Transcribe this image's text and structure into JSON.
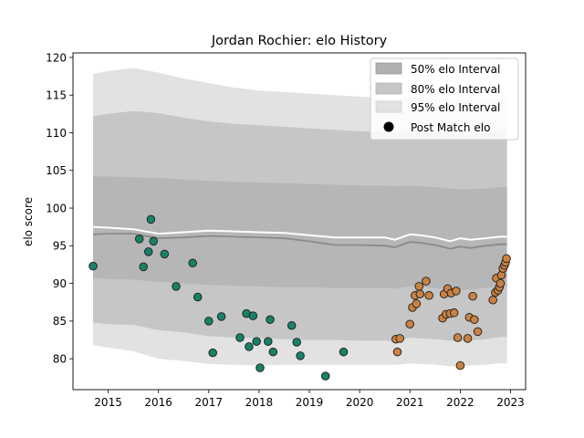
{
  "chart_data": {
    "type": "scatter",
    "title": "Jordan Rochier: elo History",
    "xlabel": "",
    "ylabel": "elo score",
    "xlim": [
      2014.3,
      2023.3
    ],
    "ylim": [
      75.9,
      120.6
    ],
    "x_ticks": [
      2015,
      2016,
      2017,
      2018,
      2019,
      2020,
      2021,
      2022,
      2023
    ],
    "x_tick_labels": [
      "2015",
      "2016",
      "2017",
      "2018",
      "2019",
      "2020",
      "2021",
      "2022",
      "2023"
    ],
    "y_ticks": [
      80,
      85,
      90,
      95,
      100,
      105,
      110,
      115,
      120
    ],
    "y_tick_labels": [
      "80",
      "85",
      "90",
      "95",
      "100",
      "105",
      "110",
      "115",
      "120"
    ],
    "grid": false,
    "legend": {
      "placement": "top-right",
      "entries": [
        "50% elo Interval",
        "80% elo Interval",
        "95% elo Interval",
        "Post Match elo"
      ]
    },
    "colors": {
      "band_50": "#b0b0b0",
      "band_80": "#c6c6c6",
      "band_95": "#e2e2e2",
      "median_line": "#8a8a8a",
      "mean_line": "#ffffff",
      "early_points": "#1a8068",
      "late_points": "#c98243",
      "point_edge": "#1a1a1a"
    },
    "bands": {
      "x": [
        2014.7,
        2015.0,
        2015.5,
        2016.0,
        2016.5,
        2017.0,
        2017.5,
        2018.0,
        2018.5,
        2019.0,
        2019.5,
        2020.0,
        2020.5,
        2020.7,
        2021.0,
        2021.2,
        2021.5,
        2021.8,
        2022.0,
        2022.2,
        2022.5,
        2022.8,
        2022.93
      ],
      "p95_low": [
        81.8,
        81.5,
        81.0,
        80.0,
        79.7,
        79.3,
        79.2,
        79.1,
        79.2,
        79.2,
        79.2,
        79.2,
        79.2,
        79.2,
        79.4,
        79.3,
        79.2,
        79.0,
        79.0,
        79.1,
        79.2,
        79.4,
        79.4
      ],
      "p80_low": [
        84.8,
        84.6,
        84.5,
        83.8,
        83.5,
        83.0,
        82.8,
        82.7,
        82.6,
        82.5,
        82.5,
        82.4,
        82.4,
        82.3,
        82.8,
        82.7,
        82.6,
        82.4,
        82.3,
        82.4,
        82.6,
        82.9,
        82.9
      ],
      "p50_low": [
        90.7,
        90.6,
        90.5,
        90.2,
        90.0,
        89.8,
        89.7,
        89.6,
        89.5,
        89.5,
        89.4,
        89.4,
        89.4,
        89.3,
        89.6,
        89.5,
        89.4,
        89.2,
        89.1,
        89.2,
        89.4,
        89.6,
        89.6
      ],
      "p50_high": [
        104.2,
        104.2,
        104.1,
        104.0,
        103.8,
        103.6,
        103.5,
        103.4,
        103.3,
        103.2,
        103.1,
        103.0,
        103.0,
        102.9,
        103.0,
        102.9,
        102.8,
        102.6,
        102.5,
        102.5,
        102.6,
        102.8,
        102.8
      ],
      "p80_high": [
        112.2,
        112.5,
        112.9,
        112.6,
        112.0,
        111.5,
        111.2,
        111.0,
        110.8,
        110.6,
        110.4,
        110.2,
        110.1,
        110.0,
        110.3,
        110.2,
        110.1,
        109.9,
        109.8,
        109.8,
        109.9,
        110.2,
        110.2
      ],
      "p95_high": [
        117.8,
        118.2,
        118.6,
        118.0,
        117.2,
        116.6,
        116.0,
        115.6,
        115.4,
        115.2,
        115.0,
        114.8,
        114.6,
        114.5,
        114.8,
        114.7,
        114.6,
        114.4,
        114.3,
        114.3,
        114.4,
        114.6,
        114.6
      ],
      "median": [
        96.5,
        96.6,
        96.6,
        96.0,
        96.1,
        96.3,
        96.2,
        96.1,
        96.0,
        95.6,
        95.1,
        95.1,
        95.0,
        94.8,
        95.5,
        95.4,
        95.1,
        94.6,
        94.9,
        94.7,
        95.0,
        95.2,
        95.2
      ],
      "mean": [
        97.5,
        97.4,
        97.2,
        96.6,
        96.8,
        97.0,
        96.9,
        96.8,
        96.7,
        96.4,
        96.1,
        96.1,
        96.1,
        95.8,
        96.5,
        96.4,
        96.1,
        95.6,
        96.0,
        95.8,
        96.0,
        96.2,
        96.2
      ]
    },
    "series": [
      {
        "name": "Post Match elo",
        "x": [
          2014.7,
          2015.62,
          2015.7,
          2015.8,
          2015.85,
          2015.9,
          2016.12,
          2016.35,
          2016.68,
          2016.78,
          2017.0,
          2017.08,
          2017.25,
          2017.62,
          2017.75,
          2017.8,
          2017.88,
          2017.95,
          2018.02,
          2018.18,
          2018.22,
          2018.28,
          2018.65,
          2018.75,
          2018.82,
          2019.32,
          2019.68
        ],
        "y": [
          92.3,
          95.9,
          92.2,
          94.2,
          98.5,
          95.6,
          93.9,
          89.6,
          92.7,
          88.2,
          85.0,
          80.8,
          85.6,
          82.8,
          86.0,
          81.6,
          85.7,
          82.3,
          78.8,
          82.3,
          85.2,
          80.9,
          84.4,
          82.2,
          80.4,
          77.7,
          80.9
        ]
      },
      {
        "name": "",
        "x": [
          2020.72,
          2020.75,
          2020.8,
          2021.0,
          2021.05,
          2021.1,
          2021.13,
          2021.18,
          2021.2,
          2021.32,
          2021.38,
          2021.65,
          2021.68,
          2021.72,
          2021.75,
          2021.8,
          2021.82,
          2021.88,
          2021.92,
          2021.95,
          2022.0,
          2022.15,
          2022.18,
          2022.25,
          2022.28,
          2022.35,
          2022.65,
          2022.7,
          2022.72,
          2022.75,
          2022.78,
          2022.8,
          2022.82,
          2022.85,
          2022.88,
          2022.9,
          2022.92
        ],
        "y": [
          82.6,
          80.9,
          82.7,
          84.6,
          86.8,
          88.4,
          87.3,
          89.6,
          88.6,
          90.3,
          88.4,
          85.4,
          88.6,
          85.9,
          89.3,
          86.0,
          88.7,
          86.1,
          89.0,
          82.8,
          79.1,
          82.7,
          85.5,
          88.3,
          85.2,
          83.6,
          87.8,
          88.8,
          90.7,
          89.1,
          89.5,
          90.0,
          91.1,
          92.0,
          92.4,
          92.8,
          93.3
        ]
      }
    ]
  }
}
